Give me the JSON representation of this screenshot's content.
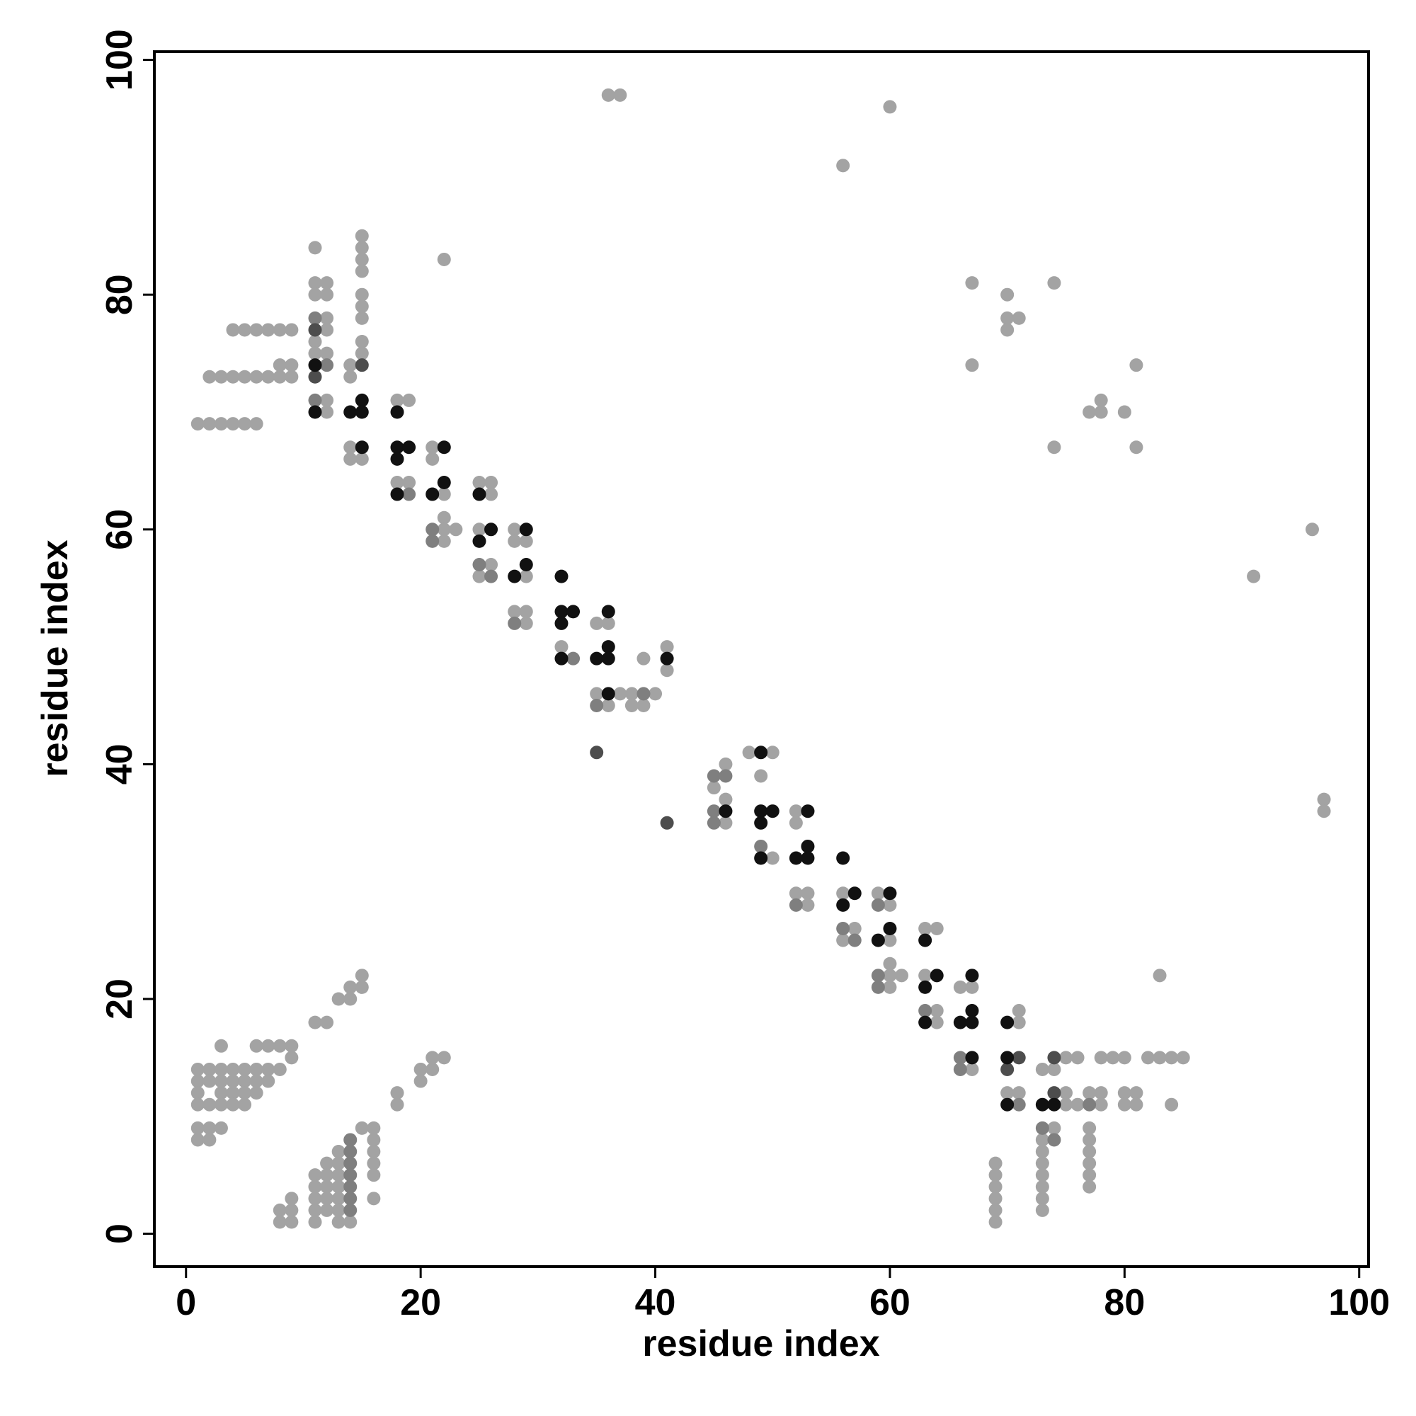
{
  "chart_data": {
    "type": "scatter",
    "xlabel": "residue index",
    "ylabel": "residue index",
    "xlim": [
      -2.7,
      100.8
    ],
    "ylim": [
      -2.8,
      100.7
    ],
    "xticks": [
      0,
      20,
      40,
      60,
      80,
      100
    ],
    "yticks": [
      0,
      20,
      40,
      60,
      80,
      100
    ],
    "grid": false,
    "series": [
      {
        "color": "#a3a3a3",
        "x": [
          1,
          2,
          3,
          4,
          5,
          6,
          2,
          3,
          4,
          5,
          6,
          7,
          8,
          9,
          8,
          9,
          4,
          5,
          6,
          7,
          8,
          9,
          11,
          11,
          11,
          11,
          11,
          12,
          12,
          12,
          12,
          12,
          12,
          12,
          14,
          14,
          14,
          14,
          15,
          15,
          15,
          15,
          15,
          15,
          15,
          15,
          15,
          15,
          18,
          18,
          19,
          19,
          21,
          21,
          22,
          22,
          22,
          22,
          22,
          23,
          25,
          25,
          25,
          26,
          26,
          26,
          28,
          28,
          28,
          29,
          29,
          29,
          29,
          32,
          35,
          35,
          36,
          36,
          37,
          38,
          38,
          39,
          39,
          40,
          41,
          41,
          36,
          37,
          56,
          60,
          67,
          67,
          70,
          70,
          70,
          71,
          74,
          74,
          77,
          78,
          78,
          80,
          81,
          81,
          91,
          96,
          97,
          97,
          45,
          46,
          46,
          46,
          48,
          49,
          50,
          50,
          52,
          52,
          52,
          53,
          53,
          56,
          56,
          57,
          59,
          60,
          60,
          60,
          60,
          60,
          61,
          63,
          63,
          64,
          64,
          64,
          66,
          67,
          67,
          70,
          71,
          71,
          71,
          73,
          73,
          73,
          73,
          73,
          73,
          73,
          73,
          74,
          74,
          75,
          75,
          75,
          76,
          76,
          77,
          77,
          77,
          77,
          77,
          77,
          77,
          78,
          78,
          78,
          79,
          80,
          80,
          80,
          81,
          81,
          82,
          83,
          83,
          84,
          84,
          85,
          69,
          69,
          69,
          69,
          69,
          69,
          1,
          1,
          1,
          1,
          1,
          1,
          2,
          2,
          2,
          2,
          2,
          3,
          3,
          3,
          3,
          3,
          3,
          4,
          4,
          4,
          4,
          5,
          5,
          5,
          5,
          6,
          6,
          6,
          6,
          7,
          7,
          7,
          8,
          8,
          9,
          9,
          8,
          8,
          9,
          9,
          9,
          11,
          11,
          11,
          11,
          11,
          11,
          12,
          12,
          12,
          12,
          12,
          12,
          13,
          13,
          13,
          13,
          13,
          13,
          13,
          13,
          14,
          14,
          14,
          15,
          15,
          15,
          16,
          16,
          16,
          16,
          16,
          16,
          18,
          18,
          20,
          20,
          21,
          21,
          22
        ],
        "values": [
          69,
          69,
          69,
          69,
          69,
          69,
          73,
          73,
          73,
          73,
          73,
          73,
          73,
          73,
          74,
          74,
          77,
          77,
          77,
          77,
          77,
          77,
          84,
          81,
          80,
          76,
          75,
          81,
          80,
          78,
          77,
          75,
          71,
          70,
          74,
          73,
          67,
          66,
          85,
          84,
          83,
          82,
          80,
          79,
          78,
          76,
          75,
          66,
          71,
          64,
          71,
          64,
          67,
          66,
          83,
          63,
          61,
          60,
          59,
          60,
          64,
          60,
          56,
          64,
          63,
          57,
          60,
          59,
          53,
          59,
          56,
          53,
          52,
          50,
          52,
          46,
          52,
          45,
          46,
          46,
          45,
          49,
          45,
          46,
          50,
          48,
          97,
          97,
          91,
          96,
          81,
          74,
          80,
          78,
          77,
          78,
          81,
          67,
          70,
          71,
          70,
          70,
          74,
          67,
          56,
          60,
          37,
          36,
          38,
          40,
          37,
          35,
          41,
          39,
          41,
          32,
          36,
          35,
          29,
          29,
          28,
          29,
          25,
          26,
          29,
          28,
          25,
          23,
          22,
          21,
          22,
          26,
          22,
          26,
          19,
          18,
          21,
          21,
          14,
          12,
          19,
          18,
          12,
          14,
          8,
          7,
          6,
          5,
          4,
          3,
          2,
          14,
          9,
          15,
          12,
          11,
          15,
          11,
          12,
          9,
          8,
          7,
          6,
          5,
          4,
          15,
          12,
          11,
          15,
          15,
          12,
          11,
          12,
          11,
          15,
          22,
          15,
          15,
          11,
          15,
          6,
          5,
          4,
          3,
          2,
          1,
          14,
          13,
          12,
          11,
          9,
          8,
          14,
          13,
          11,
          9,
          8,
          16,
          14,
          13,
          12,
          11,
          9,
          14,
          13,
          12,
          11,
          14,
          13,
          12,
          11,
          16,
          14,
          13,
          12,
          16,
          14,
          13,
          16,
          14,
          16,
          15,
          2,
          1,
          3,
          2,
          1,
          18,
          5,
          4,
          3,
          2,
          1,
          18,
          6,
          5,
          4,
          3,
          2,
          20,
          7,
          6,
          5,
          4,
          3,
          2,
          1,
          21,
          20,
          1,
          22,
          21,
          9,
          9,
          8,
          7,
          6,
          5,
          3,
          12,
          11,
          14,
          13,
          15,
          14,
          15
        ]
      },
      {
        "color": "#7f7f7f",
        "x": [
          11,
          11,
          12,
          19,
          21,
          21,
          25,
          26,
          28,
          33,
          35,
          39,
          45,
          45,
          45,
          46,
          49,
          52,
          56,
          57,
          59,
          59,
          59,
          63,
          66,
          66,
          71,
          73,
          74,
          77,
          14,
          14,
          14,
          14,
          14,
          14,
          14
        ],
        "values": [
          78,
          71,
          74,
          63,
          60,
          59,
          57,
          56,
          52,
          49,
          45,
          46,
          39,
          36,
          35,
          39,
          33,
          28,
          26,
          25,
          28,
          22,
          21,
          19,
          15,
          14,
          11,
          9,
          8,
          11,
          8,
          7,
          6,
          5,
          4,
          3,
          2
        ]
      },
      {
        "color": "#4d4d4d",
        "x": [
          11,
          11,
          15,
          35,
          41,
          70,
          71,
          74,
          74
        ],
        "values": [
          77,
          73,
          74,
          41,
          35,
          14,
          15,
          15,
          12
        ]
      },
      {
        "color": "#111111",
        "x": [
          11,
          11,
          14,
          15,
          15,
          15,
          18,
          18,
          18,
          18,
          19,
          21,
          22,
          22,
          25,
          25,
          26,
          28,
          29,
          29,
          32,
          32,
          32,
          32,
          33,
          35,
          36,
          36,
          36,
          36,
          41,
          46,
          49,
          49,
          49,
          49,
          50,
          52,
          53,
          53,
          53,
          56,
          56,
          57,
          59,
          60,
          60,
          63,
          63,
          63,
          64,
          66,
          67,
          67,
          67,
          67,
          70,
          70,
          70,
          73,
          74
        ],
        "values": [
          74,
          70,
          70,
          71,
          70,
          67,
          70,
          67,
          66,
          63,
          67,
          63,
          67,
          64,
          63,
          59,
          60,
          56,
          60,
          57,
          56,
          53,
          52,
          49,
          53,
          49,
          53,
          50,
          49,
          46,
          49,
          36,
          41,
          36,
          35,
          32,
          36,
          32,
          36,
          33,
          32,
          32,
          28,
          29,
          25,
          29,
          26,
          25,
          21,
          18,
          22,
          18,
          22,
          19,
          18,
          15,
          18,
          15,
          11,
          11,
          11
        ]
      }
    ]
  }
}
